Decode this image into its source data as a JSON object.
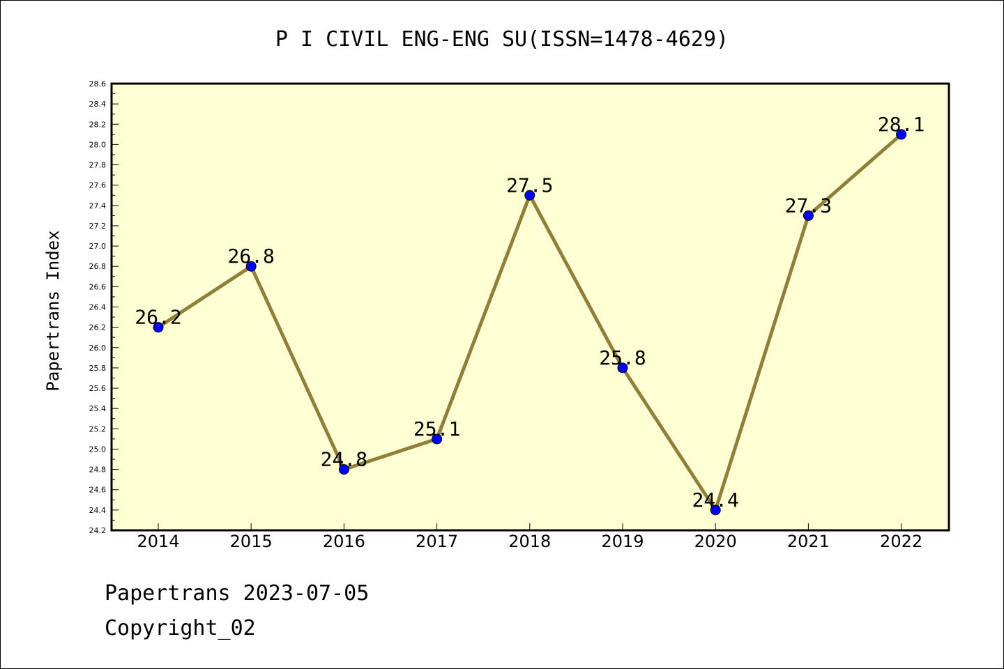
{
  "chart_data": {
    "type": "line",
    "title": "P I CIVIL ENG-ENG SU(ISSN=1478-4629)",
    "xlabel": "",
    "ylabel": "Papertrans Index",
    "categories": [
      "2014",
      "2015",
      "2016",
      "2017",
      "2018",
      "2019",
      "2020",
      "2021",
      "2022"
    ],
    "values": [
      26.2,
      26.8,
      24.8,
      25.1,
      27.5,
      25.8,
      24.4,
      27.3,
      28.1
    ],
    "data_labels": [
      "26.2",
      "26.8",
      "24.8",
      "25.1",
      "27.5",
      "25.8",
      "24.4",
      "27.3",
      "28.1"
    ],
    "ylim": [
      24.2,
      28.6
    ],
    "yticks": [
      "24.2",
      "24.4",
      "24.6",
      "24.8",
      "25.0",
      "25.2",
      "25.4",
      "25.6",
      "25.8",
      "26.0",
      "26.2",
      "26.4",
      "26.6",
      "26.8",
      "27.0",
      "27.2",
      "27.4",
      "27.6",
      "27.8",
      "28.0",
      "28.2",
      "28.4",
      "28.6"
    ],
    "grid": false,
    "colors": {
      "plot_background": "#ffffd4",
      "line": "#8f7f3a",
      "marker": "#0000ff"
    }
  },
  "footer": {
    "line1": "Papertrans 2023-07-05",
    "line2": "Copyright_02"
  }
}
